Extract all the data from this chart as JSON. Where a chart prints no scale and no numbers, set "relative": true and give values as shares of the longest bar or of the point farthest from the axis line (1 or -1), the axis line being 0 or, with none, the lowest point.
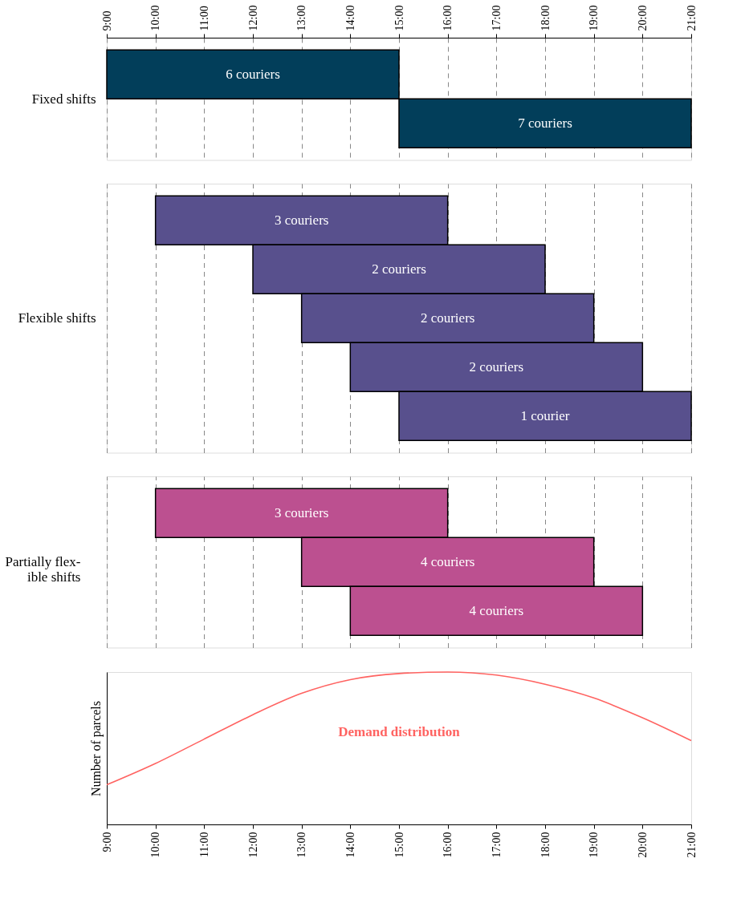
{
  "chart_data": [
    {
      "type": "bar",
      "orientation": "horizontal",
      "ylabel": "Fixed shifts",
      "categories": [
        null,
        null
      ],
      "series": [
        {
          "color": "#023e5a",
          "base": [
            9,
            15
          ],
          "values": [
            6,
            6
          ]
        }
      ],
      "annotations": [
        "6 couriers",
        "7 couriers"
      ],
      "xlim": [
        9,
        21
      ],
      "xticks": [
        {
          "value": 9,
          "label": "9:00"
        },
        {
          "value": 10,
          "label": "10:00"
        },
        {
          "value": 11,
          "label": "11:00"
        },
        {
          "value": 12,
          "label": "12:00"
        },
        {
          "value": 13,
          "label": "13:00"
        },
        {
          "value": 14,
          "label": "14:00"
        },
        {
          "value": 15,
          "label": "15:00"
        },
        {
          "value": 16,
          "label": "16:00"
        },
        {
          "value": 17,
          "label": "17:00"
        },
        {
          "value": 18,
          "label": "18:00"
        },
        {
          "value": 19,
          "label": "19:00"
        },
        {
          "value": 20,
          "label": "20:00"
        },
        {
          "value": 21,
          "label": "21:00"
        }
      ],
      "grid": "x",
      "tick_labels": "x"
    },
    {
      "type": "bar",
      "orientation": "horizontal",
      "ylabel": "Flexible shifts",
      "categories": [
        null,
        null,
        null,
        null,
        null
      ],
      "series": [
        {
          "color": "#58508d",
          "base": [
            10,
            12,
            13,
            14,
            15
          ],
          "values": [
            6,
            6,
            6,
            6,
            6
          ]
        }
      ],
      "annotations": [
        "3 couriers",
        "2 couriers",
        "2 couriers",
        "2 couriers",
        "1 courier"
      ],
      "xlim": [
        9,
        21
      ],
      "xticks": [
        {
          "value": 9,
          "label": null
        },
        {
          "value": 10,
          "label": null
        },
        {
          "value": 11,
          "label": null
        },
        {
          "value": 12,
          "label": null
        },
        {
          "value": 13,
          "label": null
        },
        {
          "value": 14,
          "label": null
        },
        {
          "value": 15,
          "label": null
        },
        {
          "value": 16,
          "label": null
        },
        {
          "value": 17,
          "label": null
        },
        {
          "value": 18,
          "label": null
        },
        {
          "value": 19,
          "label": null
        },
        {
          "value": 20,
          "label": null
        },
        {
          "value": 21,
          "label": null
        }
      ],
      "grid": "x",
      "tick_labels": false
    },
    {
      "type": "bar",
      "orientation": "horizontal",
      "ylabel": "Partially flex-\nible shifts",
      "categories": [
        null,
        null,
        null
      ],
      "series": [
        {
          "color": "#bc5090",
          "base": [
            10,
            13,
            14
          ],
          "values": [
            6,
            6,
            6
          ]
        }
      ],
      "annotations": [
        "3 couriers",
        "4 couriers",
        "4 couriers"
      ],
      "xlim": [
        9,
        21
      ],
      "xticks": [
        {
          "value": 9,
          "label": null
        },
        {
          "value": 10,
          "label": null
        },
        {
          "value": 11,
          "label": null
        },
        {
          "value": 12,
          "label": null
        },
        {
          "value": 13,
          "label": null
        },
        {
          "value": 14,
          "label": null
        },
        {
          "value": 15,
          "label": null
        },
        {
          "value": 16,
          "label": null
        },
        {
          "value": 17,
          "label": null
        },
        {
          "value": 18,
          "label": null
        },
        {
          "value": 19,
          "label": null
        },
        {
          "value": 20,
          "label": null
        },
        {
          "value": 21,
          "label": null
        }
      ],
      "grid": "x",
      "tick_labels": false
    },
    {
      "type": "line",
      "relative": true,
      "ylabel": "Number of parcels",
      "annotations": [
        "Demand distribution"
      ],
      "series": [
        {
          "color": "#ff6361",
          "x": [
            9,
            10,
            11,
            12,
            13,
            14,
            15,
            16,
            17,
            18,
            19,
            20,
            21
          ],
          "values": [
            0.26,
            0.4,
            0.56,
            0.72,
            0.86,
            0.95,
            0.99,
            1,
            0.98,
            0.92,
            0.83,
            0.7,
            0.55
          ]
        }
      ],
      "xlim": [
        9,
        21
      ],
      "xticks": [
        {
          "value": 9,
          "label": "9:00"
        },
        {
          "value": 10,
          "label": "10:00"
        },
        {
          "value": 11,
          "label": "11:00"
        },
        {
          "value": 12,
          "label": "12:00"
        },
        {
          "value": 13,
          "label": "13:00"
        },
        {
          "value": 14,
          "label": "14:00"
        },
        {
          "value": 15,
          "label": "15:00"
        },
        {
          "value": 16,
          "label": "16:00"
        },
        {
          "value": 17,
          "label": "17:00"
        },
        {
          "value": 18,
          "label": "18:00"
        },
        {
          "value": 19,
          "label": "19:00"
        },
        {
          "value": 20,
          "label": "20:00"
        },
        {
          "value": 21,
          "label": "21:00"
        }
      ],
      "marker": "none",
      "line_style": "solid",
      "grid": false
    }
  ]
}
